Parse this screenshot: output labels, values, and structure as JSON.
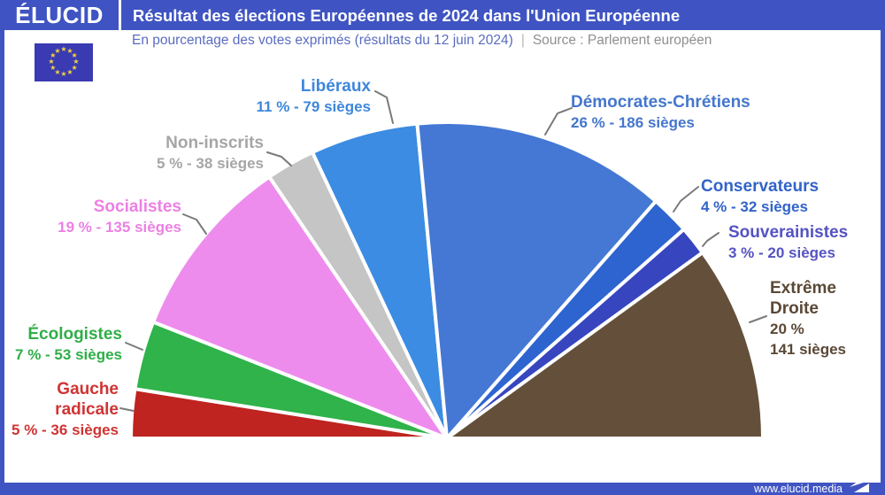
{
  "header": {
    "logo": "ÉLUCID",
    "title": "Résultat des élections Européennes de 2024 dans l'Union Européenne",
    "bar_color": "#3f54c2"
  },
  "subtitle": {
    "main": "En pourcentage des votes exprimés (résultats du 12 juin 2024)",
    "separator": "|",
    "source": "Source : Parlement européen"
  },
  "flag": {
    "name": "drapeau-union-europeenne",
    "background": "#3a3ab2",
    "star_color": "#f2d23e",
    "star_count": 12
  },
  "footer": {
    "url": "www.elucid.media"
  },
  "chart_data": {
    "type": "pie",
    "variant": "half-pie",
    "title": "Résultat des élections Européennes de 2024 dans l'Union Européenne",
    "unit": "pourcentage des votes exprimés",
    "orientation": "left-to-right over 180 degrees",
    "slices": [
      {
        "name": "Gauche radicale",
        "pct": 5,
        "seats": 36,
        "color": "#bf2420",
        "label_color": "#d03434",
        "name_lines": [
          "Gauche",
          "radicale"
        ],
        "value_lines": [
          "5 % - 36 sièges"
        ]
      },
      {
        "name": "Écologistes",
        "pct": 7,
        "seats": 53,
        "color": "#2fb34a",
        "label_color": "#2fae48",
        "name_lines": [
          "Écologistes"
        ],
        "value_lines": [
          "7 % - 53 sièges"
        ]
      },
      {
        "name": "Socialistes",
        "pct": 19,
        "seats": 135,
        "color": "#ee8cee",
        "label_color": "#ec80e4",
        "name_lines": [
          "Socialistes"
        ],
        "value_lines": [
          "19 % - 135 sièges"
        ]
      },
      {
        "name": "Non-inscrits",
        "pct": 5,
        "seats": 38,
        "color": "#c5c5c5",
        "label_color": "#a6a6a6",
        "name_lines": [
          "Non-inscrits"
        ],
        "value_lines": [
          "5 % - 38 sièges"
        ]
      },
      {
        "name": "Libéraux",
        "pct": 11,
        "seats": 79,
        "color": "#3b8ce2",
        "label_color": "#3e87dc",
        "name_lines": [
          "Libéraux"
        ],
        "value_lines": [
          "11 % - 79 sièges"
        ]
      },
      {
        "name": "Démocrates-Chrétiens",
        "pct": 26,
        "seats": 186,
        "color": "#4478d4",
        "label_color": "#4476cd",
        "name_lines": [
          "Démocrates-Chrétiens"
        ],
        "value_lines": [
          "26 % - 186 sièges"
        ]
      },
      {
        "name": "Conservateurs",
        "pct": 4,
        "seats": 32,
        "color": "#2e64d0",
        "label_color": "#3263c8",
        "name_lines": [
          "Conservateurs"
        ],
        "value_lines": [
          "4 % - 32 sièges"
        ]
      },
      {
        "name": "Souverainistes",
        "pct": 3,
        "seats": 20,
        "color": "#3746be",
        "label_color": "#5553c2",
        "name_lines": [
          "Souverainistes"
        ],
        "value_lines": [
          "3 % - 20 sièges"
        ]
      },
      {
        "name": "Extrême Droite",
        "pct": 20,
        "seats": 141,
        "color": "#64503a",
        "label_color": "#5a4836",
        "name_lines": [
          "Extrême",
          "Droite"
        ],
        "value_lines": [
          "20 %",
          "141 sièges"
        ]
      }
    ]
  }
}
